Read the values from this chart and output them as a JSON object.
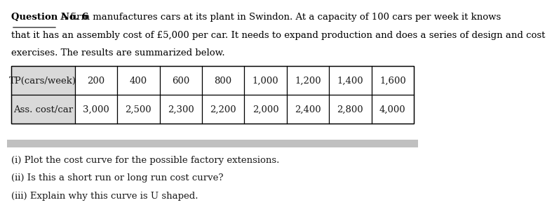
{
  "title_bold": "Question No. 6",
  "title_rest_line1": " A firm manufactures cars at its plant in Swindon. At a capacity of 100 cars per week it knows",
  "title_line2": "that it has an assembly cost of £5,000 per car. It needs to expand production and does a series of design and cost",
  "title_line3": "exercises. The results are summarized below.",
  "table_header": [
    "TP(cars/week)",
    "200",
    "400",
    "600",
    "800",
    "1,000",
    "1,200",
    "1,400",
    "1,600"
  ],
  "table_row": [
    "Ass. cost/car",
    "3,000",
    "2,500",
    "2,300",
    "2,200",
    "2,000",
    "2,400",
    "2,800",
    "4,000"
  ],
  "footer_lines": [
    "(i) Plot the cost curve for the possible factory extensions.",
    "(ii) Is this a short run or long run cost curve?",
    "(iii) Explain why this curve is U shaped."
  ],
  "background_color": "#ffffff",
  "table_header_bg": "#d9d9d9",
  "table_border_color": "#000000",
  "text_color": "#1a1a1a",
  "separator_color": "#c0c0c0",
  "title_color": "#000000",
  "footer_color": "#1a1a1a",
  "font_size_title": 9.5,
  "font_size_table": 9.5,
  "font_size_footer": 9.5
}
